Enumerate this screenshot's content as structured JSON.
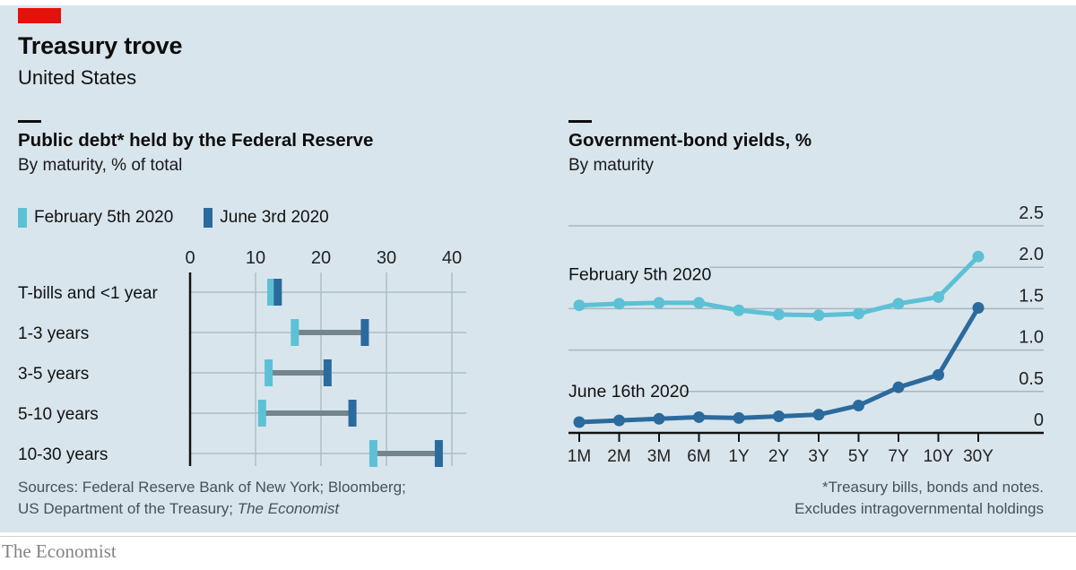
{
  "header": {
    "title": "Treasury trove",
    "subtitle": "United States"
  },
  "colors": {
    "panel_background": "#d9e5ec",
    "economist_red": "#e3120b",
    "feb_light_blue": "#5dc1d5",
    "june_dark_blue": "#2b6a9d",
    "connector_gray": "#73858d",
    "gridline": "#aebec5",
    "axis_dark": "#111111",
    "text_dark": "#0d0d0d",
    "text_muted": "#44525b"
  },
  "chart_data": [
    {
      "type": "dumbbell",
      "title": "Public debt* held by the Federal Reserve",
      "subtitle": "By maturity, % of total",
      "orientation": "horizontal",
      "legend_position": "top",
      "categories": [
        "T-bills and <1 year",
        "1-3 years",
        "3-5 years",
        "5-10 years",
        "10-30 years"
      ],
      "series": [
        {
          "name": "February 5th 2020",
          "values": [
            12.4,
            16,
            12,
            11,
            28
          ],
          "color": "#5dc1d5"
        },
        {
          "name": "June 3rd 2020",
          "values": [
            13.4,
            26.7,
            21,
            24.8,
            38
          ],
          "color": "#2b6a9d"
        }
      ],
      "xlim": [
        0,
        40
      ],
      "xticks": [
        0,
        10,
        20,
        30,
        40
      ],
      "grid": true
    },
    {
      "type": "line",
      "title": "Government-bond yields, %",
      "subtitle": "By maturity",
      "x": [
        "1M",
        "2M",
        "3M",
        "6M",
        "1Y",
        "2Y",
        "3Y",
        "5Y",
        "7Y",
        "10Y",
        "30Y"
      ],
      "series": [
        {
          "name": "February 5th 2020",
          "values": [
            1.54,
            1.56,
            1.57,
            1.57,
            1.48,
            1.43,
            1.42,
            1.44,
            1.56,
            1.64,
            2.13
          ],
          "color": "#5dc1d5"
        },
        {
          "name": "June 16th 2020",
          "values": [
            0.13,
            0.15,
            0.17,
            0.19,
            0.18,
            0.2,
            0.22,
            0.33,
            0.55,
            0.7,
            1.51
          ],
          "color": "#2b6a9d"
        }
      ],
      "ylim": [
        0,
        2.5
      ],
      "yticks": [
        0,
        0.5,
        1.0,
        1.5,
        2.0,
        2.5
      ],
      "grid": true,
      "ylabel_position": "right",
      "series_labels": "inline"
    }
  ],
  "footnotes": {
    "sources_line1": "Sources: Federal Reserve Bank of New York; Bloomberg;",
    "sources_line2_prefix": "US Department of the Treasury; ",
    "sources_line2_italic": "The Economist",
    "note_line1": "*Treasury bills, bonds and notes.",
    "note_line2": "Excludes intragovernmental holdings"
  },
  "footer": {
    "publication": "The Economist"
  }
}
